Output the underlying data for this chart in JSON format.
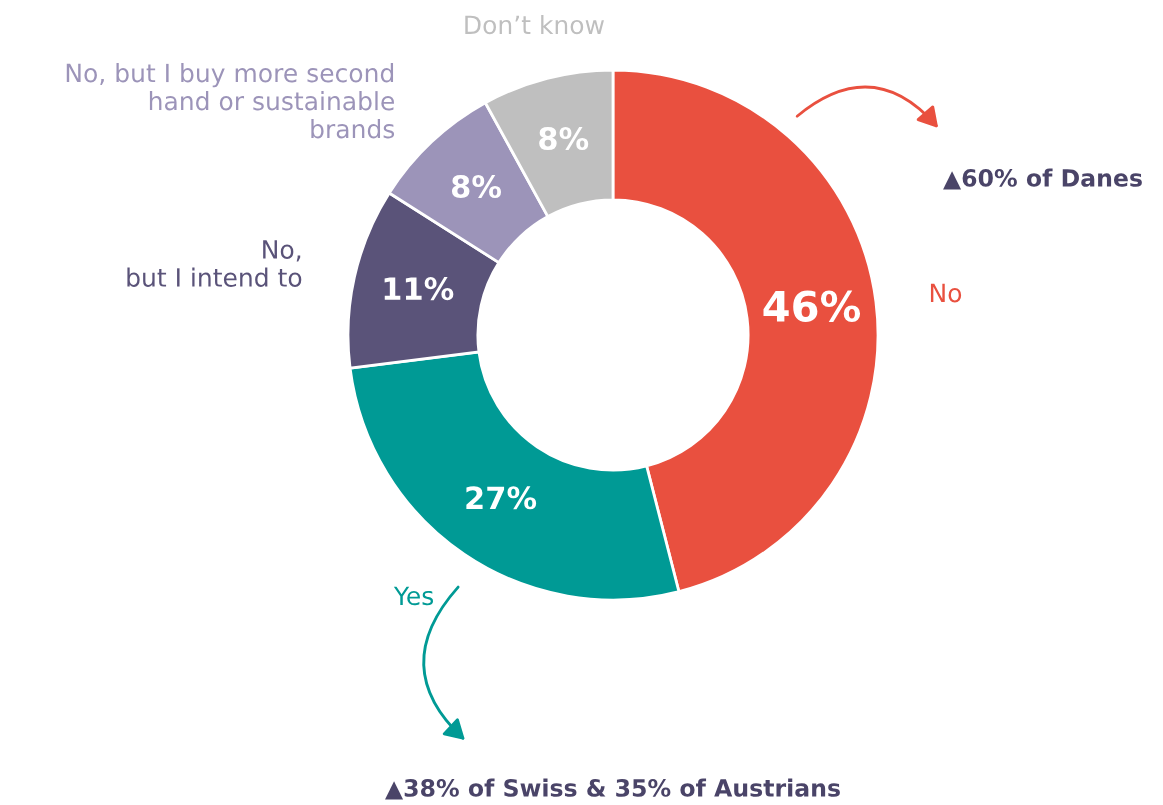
{
  "chart_data": {
    "type": "donut",
    "categories": [
      "No",
      "Yes",
      "No,\nbut I intend to",
      "No, but I buy more second\nhand or sustainable\nbrands",
      "Don’t know"
    ],
    "values": [
      46,
      27,
      11,
      8,
      8
    ],
    "colors": [
      "#e9503f",
      "#009a95",
      "#5a5379",
      "#9c94b9",
      "#bfbfbf"
    ],
    "value_labels": [
      "46%",
      "27%",
      "11%",
      "8%",
      "8%"
    ],
    "annotations": [
      "▲60% of Danes",
      "▲38% of Swiss & 35% of Austrians"
    ]
  }
}
